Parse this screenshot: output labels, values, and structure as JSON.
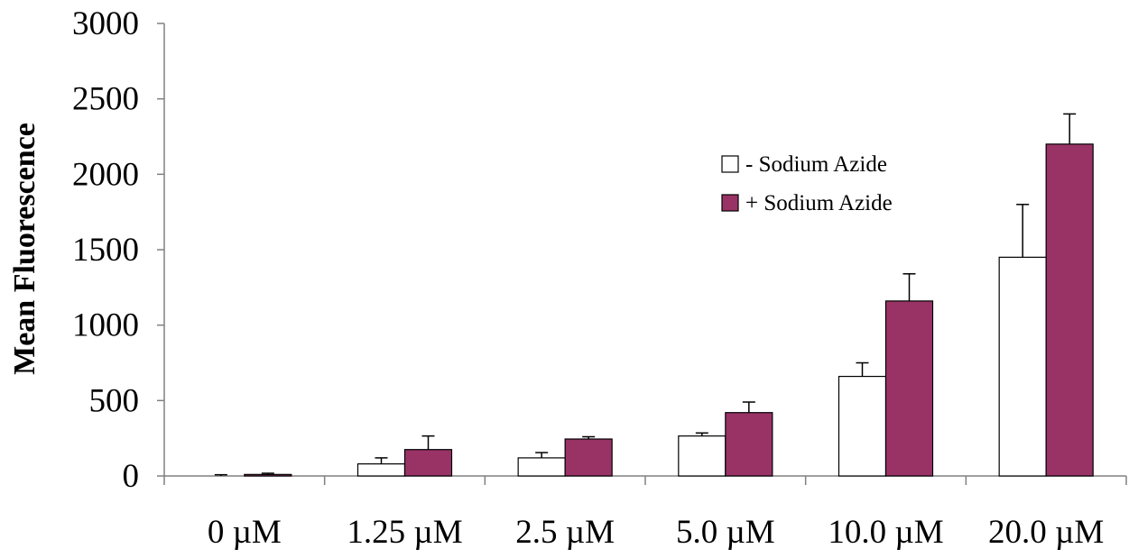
{
  "chart_data": {
    "type": "bar",
    "title": "",
    "xlabel": "",
    "ylabel": "Mean Fluorescence",
    "ylim": [
      0,
      3000
    ],
    "yticks": [
      0,
      500,
      1000,
      1500,
      2000,
      2500,
      3000
    ],
    "categories": [
      "0 µM",
      "1.25 µM",
      "2.5 µM",
      "5.0 µM",
      "10.0 µM",
      "20.0 µM"
    ],
    "series": [
      {
        "name": "- Sodium Azide",
        "color": "#ffffff",
        "values": [
          0,
          80,
          120,
          265,
          660,
          1450
        ],
        "errors": [
          8,
          40,
          35,
          20,
          90,
          350
        ]
      },
      {
        "name": "+ Sodium Azide",
        "color": "#993366",
        "values": [
          10,
          175,
          245,
          420,
          1160,
          2200
        ],
        "errors": [
          8,
          90,
          15,
          70,
          180,
          200
        ]
      }
    ],
    "grid": false,
    "legend_position": "top-right"
  }
}
